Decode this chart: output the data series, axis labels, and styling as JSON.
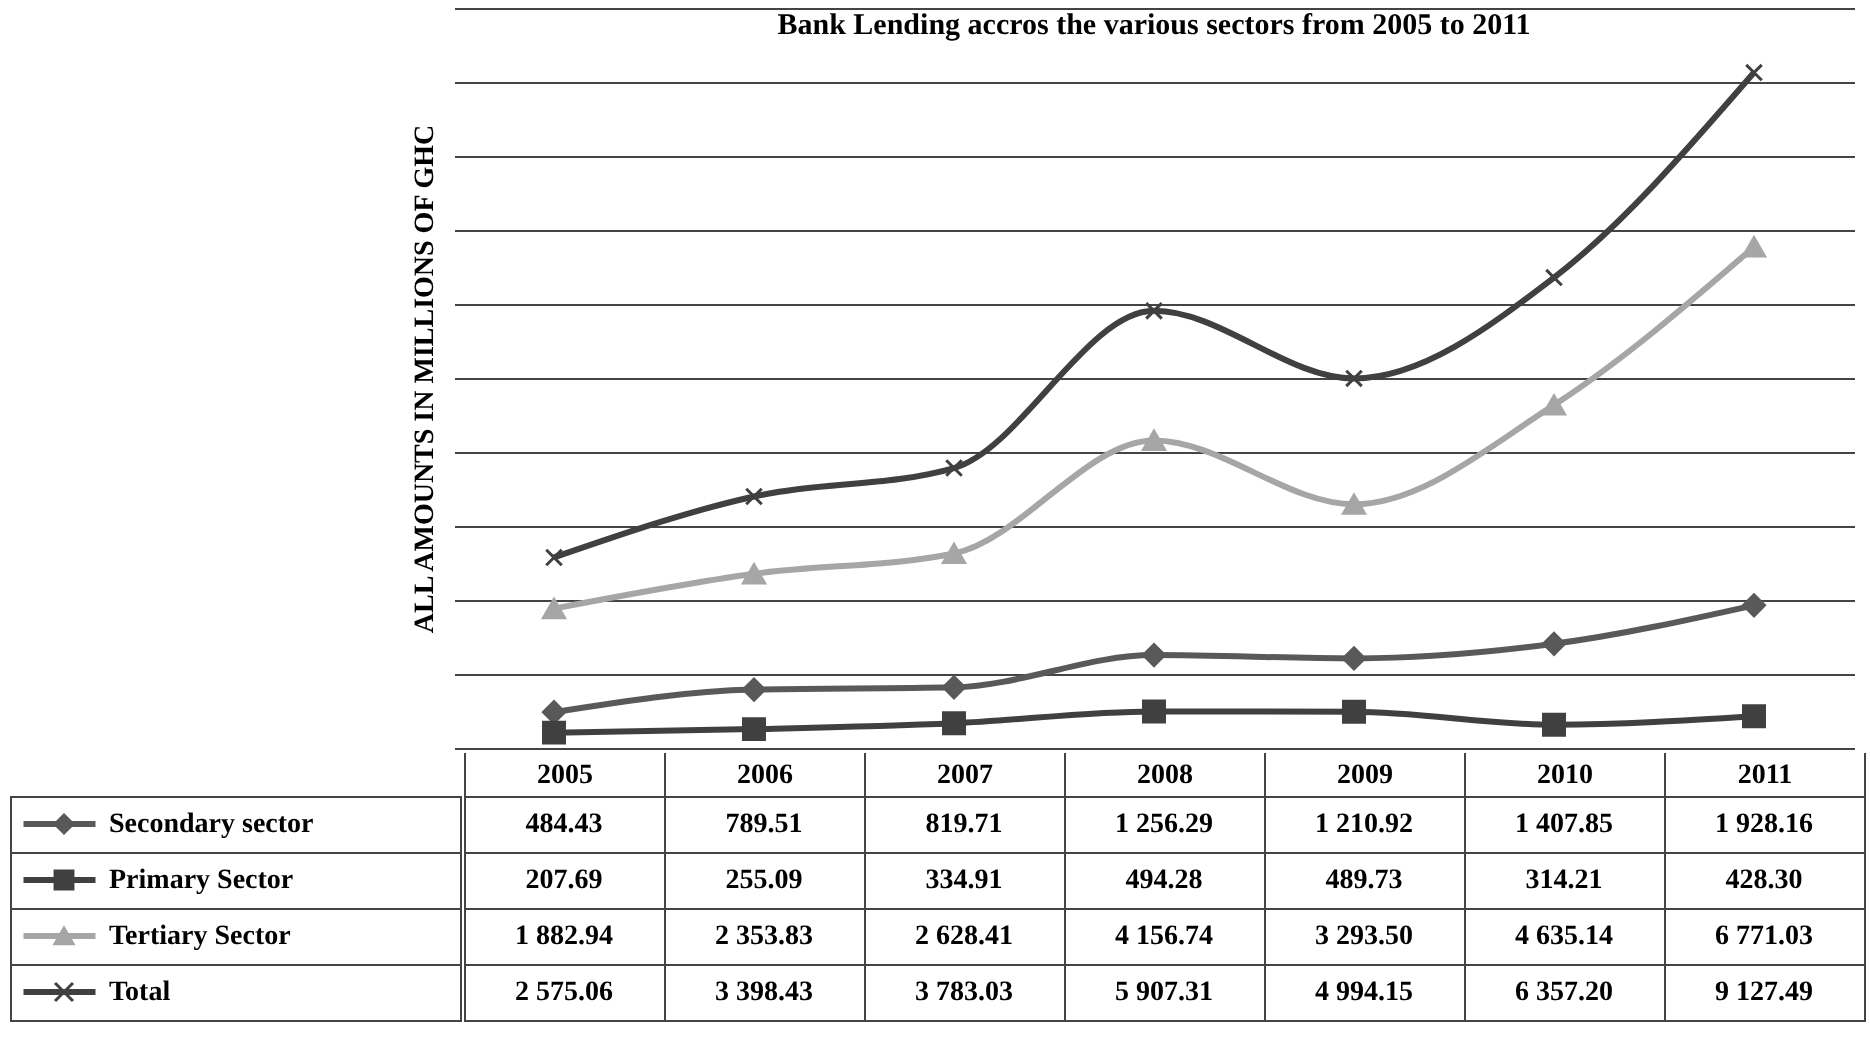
{
  "chart_data": {
    "type": "line",
    "title": "Bank Lending accros the various sectors from 2005 to 2011",
    "ylabel": "ALL AMOUNTS IN MILLIONS OF GHC",
    "categories": [
      "2005",
      "2006",
      "2007",
      "2008",
      "2009",
      "2010",
      "2011"
    ],
    "grid": "y",
    "tick_labels": "x",
    "legend": "bottom",
    "series": [
      {
        "name": "Secondary sector",
        "color": "#595959",
        "marker": "diamond",
        "values": [
          484.43,
          789.51,
          819.71,
          1256.29,
          1210.92,
          1407.85,
          1928.16
        ],
        "value_labels": [
          "484.43",
          "789.51",
          "819.71",
          "1 256.29",
          "1 210.92",
          "1 407.85",
          "1 928.16"
        ]
      },
      {
        "name": "Primary Sector",
        "color": "#404040",
        "marker": "square",
        "values": [
          207.69,
          255.09,
          334.91,
          494.28,
          489.73,
          314.21,
          428.3
        ],
        "value_labels": [
          "207.69",
          "255.09",
          "334.91",
          "494.28",
          "489.73",
          "314.21",
          "428.30"
        ]
      },
      {
        "name": "Tertiary Sector",
        "color": "#a6a6a6",
        "marker": "triangle",
        "values": [
          1882.94,
          2353.83,
          2628.41,
          4156.74,
          3293.5,
          4635.14,
          6771.03
        ],
        "value_labels": [
          "1 882.94",
          "2 353.83",
          "2 628.41",
          "4 156.74",
          "3 293.50",
          "4 635.14",
          "6 771.03"
        ]
      },
      {
        "name": "Total",
        "color": "#404040",
        "marker": "cross",
        "values": [
          2575.06,
          3398.43,
          3783.03,
          5907.31,
          4994.15,
          6357.2,
          9127.49
        ],
        "value_labels": [
          "2 575.06",
          "3 398.43",
          "3 783.03",
          "5 907.31",
          "4 994.15",
          "6 357.20",
          "9 127.49"
        ]
      }
    ]
  }
}
